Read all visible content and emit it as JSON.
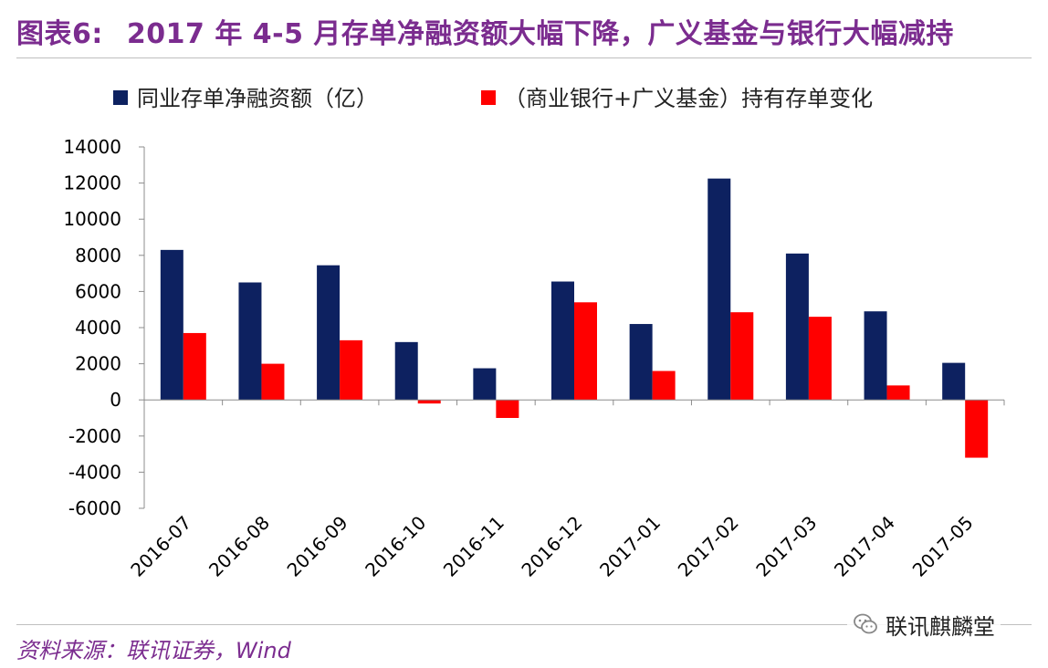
{
  "header": {
    "figure_label": "图表6:",
    "title": "2017 年 4-5 月存单净融资额大幅下降，广义基金与银行大幅减持"
  },
  "footer": {
    "source": "资料来源：联讯证券，Wind"
  },
  "watermark": {
    "icon": "wechat-icon",
    "text": "联讯麒麟堂"
  },
  "colors": {
    "navy": "#0D2160",
    "red": "#FF0000",
    "title_purple": "#7B2C8F"
  },
  "chart_data": {
    "type": "bar",
    "title": "",
    "xlabel": "",
    "ylabel": "",
    "ylim": [
      -6000,
      14000
    ],
    "yticks": [
      14000,
      12000,
      10000,
      8000,
      6000,
      4000,
      2000,
      0,
      -2000,
      -4000,
      -6000
    ],
    "grid": false,
    "legend_position": "top",
    "categories": [
      "2016-07",
      "2016-08",
      "2016-09",
      "2016-10",
      "2016-11",
      "2016-12",
      "2017-01",
      "2017-02",
      "2017-03",
      "2017-04",
      "2017-05"
    ],
    "series": [
      {
        "name": "同业存单净融资额（亿）",
        "color": "#0D2160",
        "values": [
          8300,
          6500,
          7450,
          3200,
          1750,
          6550,
          4200,
          12250,
          8100,
          4900,
          2050
        ]
      },
      {
        "name": "（商业银行+广义基金）持有存单变化",
        "color": "#FF0000",
        "values": [
          3700,
          2000,
          3300,
          -200,
          -1000,
          5400,
          1600,
          4850,
          4600,
          800,
          -3200
        ]
      }
    ]
  }
}
